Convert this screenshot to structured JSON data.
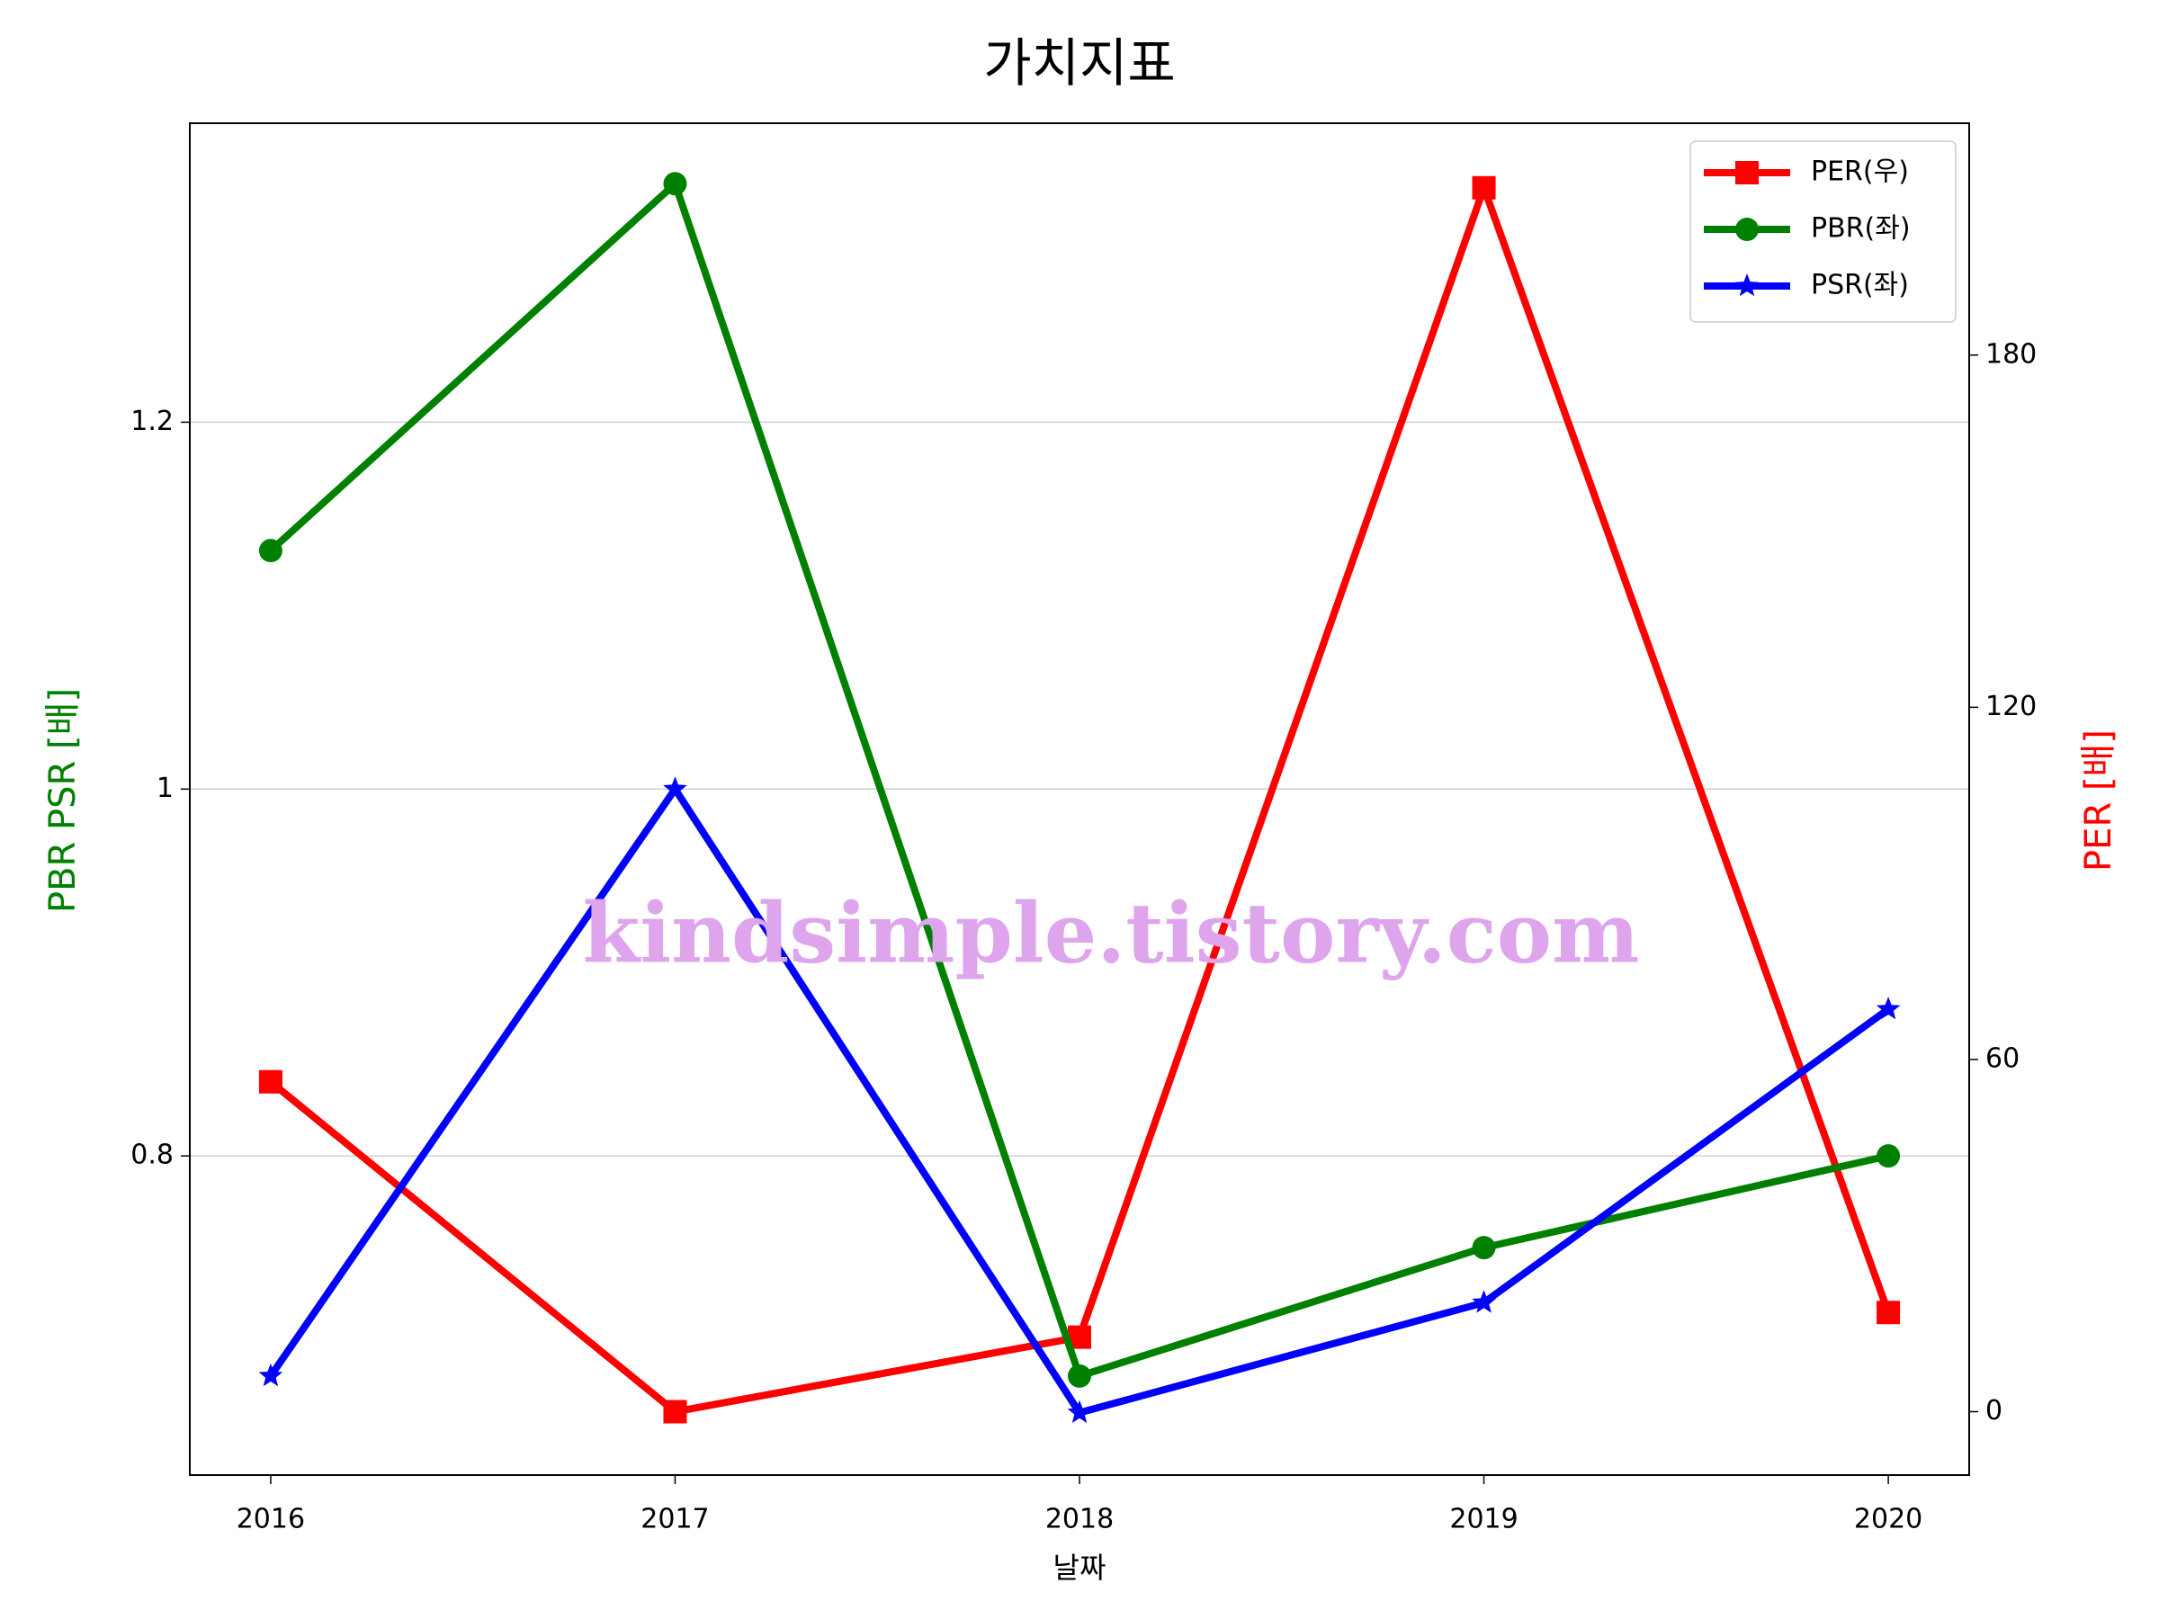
{
  "chart_data": {
    "type": "line",
    "title": "가치지표",
    "xlabel": "날짜",
    "ylabel": "PBR PSR [배]",
    "y2label": "PER [배]",
    "ylabel_color": "green",
    "y2label_color": "red",
    "x": [
      2016,
      2017,
      2018,
      2019,
      2020
    ],
    "xlim": [
      2015.8,
      2020.2
    ],
    "xticks": [
      2016,
      2017,
      2018,
      2019,
      2020
    ],
    "ylim": [
      0.626,
      1.363
    ],
    "yticks": [
      0.8,
      1.0,
      1.2
    ],
    "y2lim": [
      -10.8,
      219.5
    ],
    "y2ticks": [
      0,
      60,
      120,
      180
    ],
    "grid": true,
    "legend": "upper right",
    "watermark": "kindsimple.tistory.com",
    "series": [
      {
        "name": "PER(우)",
        "color": "red",
        "marker": "square",
        "axis": "y2",
        "values": [
          56.2,
          0,
          12.7,
          208.5,
          16.9
        ]
      },
      {
        "name": "PBR(좌)",
        "color": "green",
        "marker": "circle",
        "values": [
          1.13,
          1.33,
          0.68,
          0.75,
          0.8
        ]
      },
      {
        "name": "PSR(좌)",
        "color": "blue",
        "marker": "star",
        "values": [
          0.68,
          1.0,
          0.66,
          0.72,
          0.88
        ]
      }
    ]
  }
}
